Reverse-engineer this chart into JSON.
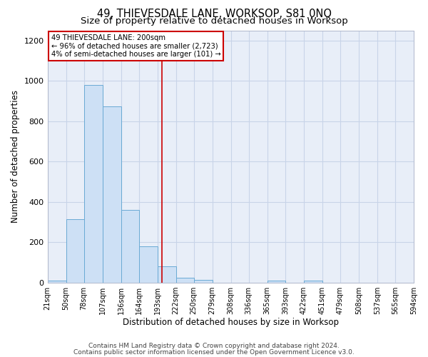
{
  "title": "49, THIEVESDALE LANE, WORKSOP, S81 0NQ",
  "subtitle": "Size of property relative to detached houses in Worksop",
  "xlabel": "Distribution of detached houses by size in Worksop",
  "ylabel": "Number of detached properties",
  "footnote1": "Contains HM Land Registry data © Crown copyright and database right 2024.",
  "footnote2": "Contains public sector information licensed under the Open Government Licence v3.0.",
  "annotation_line1": "49 THIEVESDALE LANE: 200sqm",
  "annotation_line2": "← 96% of detached houses are smaller (2,723)",
  "annotation_line3": "4% of semi-detached houses are larger (101) →",
  "bar_edges": [
    21,
    50,
    78,
    107,
    136,
    164,
    193,
    222,
    250,
    279,
    308,
    336,
    365,
    393,
    422,
    451,
    479,
    508,
    537,
    565,
    594
  ],
  "bar_heights": [
    10,
    315,
    980,
    875,
    360,
    180,
    80,
    25,
    15,
    0,
    0,
    0,
    10,
    0,
    10,
    0,
    0,
    0,
    0,
    0
  ],
  "bar_color": "#cde0f5",
  "bar_edge_color": "#6aaad4",
  "red_line_x": 200,
  "ylim": [
    0,
    1250
  ],
  "yticks": [
    0,
    200,
    400,
    600,
    800,
    1000,
    1200
  ],
  "background_color": "#e8eef8",
  "grid_color": "#c8d4e8",
  "annotation_box_color": "#ffffff",
  "annotation_border_color": "#cc0000",
  "title_fontsize": 10.5,
  "subtitle_fontsize": 9.5,
  "axis_label_fontsize": 8.5,
  "tick_fontsize": 7,
  "footnote_fontsize": 6.5
}
